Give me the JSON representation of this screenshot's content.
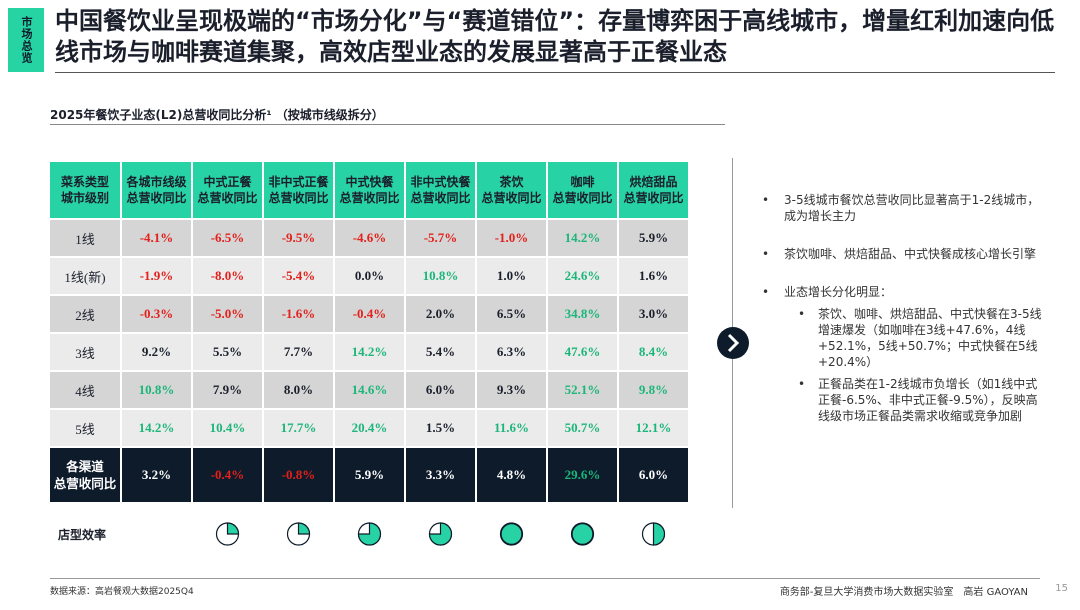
{
  "tag": "市场总览",
  "title": "中国餐饮业呈现极端的“市场分化”与“赛道错位”：存量博弈困于高线城市，增量红利加速向低线市场与咖啡赛道集聚，高效店型业态的发展显著高于正餐业态",
  "subtitle": "2025年餐饮子业态(L2)总营收同比分析¹ （按城市线级拆分）",
  "table": {
    "headers": [
      "菜系类型\n城市级别",
      "各城市线级\n总营收同比",
      "中式正餐\n总营收同比",
      "非中式正餐\n总营收同比",
      "中式快餐\n总营收同比",
      "非中式快餐\n总营收同比",
      "茶饮\n总营收同比",
      "咖啡\n总营收同比",
      "烘焙甜品\n总营收同比"
    ],
    "rows": [
      {
        "label": "1线",
        "cells": [
          "-4.1%",
          "-6.5%",
          "-9.5%",
          "-4.6%",
          "-5.7%",
          "-1.0%",
          "14.2%",
          "5.9%"
        ],
        "colors": [
          "red",
          "red",
          "red",
          "red",
          "red",
          "red",
          "green",
          "default"
        ]
      },
      {
        "label": "1线(新)",
        "cells": [
          "-1.9%",
          "-8.0%",
          "-5.4%",
          "0.0%",
          "10.8%",
          "1.0%",
          "24.6%",
          "1.6%"
        ],
        "colors": [
          "red",
          "red",
          "red",
          "default",
          "green",
          "default",
          "green",
          "default"
        ]
      },
      {
        "label": "2线",
        "cells": [
          "-0.3%",
          "-5.0%",
          "-1.6%",
          "-0.4%",
          "2.0%",
          "6.5%",
          "34.8%",
          "3.0%"
        ],
        "colors": [
          "red",
          "red",
          "red",
          "red",
          "default",
          "default",
          "green",
          "default"
        ]
      },
      {
        "label": "3线",
        "cells": [
          "9.2%",
          "5.5%",
          "7.7%",
          "14.2%",
          "5.4%",
          "6.3%",
          "47.6%",
          "8.4%"
        ],
        "colors": [
          "default",
          "default",
          "default",
          "green",
          "default",
          "default",
          "green",
          "green"
        ]
      },
      {
        "label": "4线",
        "cells": [
          "10.8%",
          "7.9%",
          "8.0%",
          "14.6%",
          "6.0%",
          "9.3%",
          "52.1%",
          "9.8%"
        ],
        "colors": [
          "green",
          "default",
          "default",
          "green",
          "default",
          "default",
          "green",
          "green"
        ]
      },
      {
        "label": "5线",
        "cells": [
          "14.2%",
          "10.4%",
          "17.7%",
          "20.4%",
          "1.5%",
          "11.6%",
          "50.7%",
          "12.1%"
        ],
        "colors": [
          "green",
          "green",
          "green",
          "green",
          "default",
          "green",
          "green",
          "green"
        ]
      }
    ],
    "total": {
      "label": "各渠道\n总营收同比",
      "cells": [
        "3.2%",
        "-0.4%",
        "-0.8%",
        "5.9%",
        "3.3%",
        "4.8%",
        "29.6%",
        "6.0%"
      ],
      "colors": [
        "default",
        "red",
        "red",
        "default",
        "default",
        "default",
        "green",
        "default"
      ]
    }
  },
  "efficiency": {
    "label": "店型效率",
    "values": [
      25,
      25,
      75,
      75,
      100,
      100,
      50
    ]
  },
  "bullets": [
    {
      "text": "3-5线城市餐饮总营收同比显著高于1-2线城市，成为增长主力",
      "sub": []
    },
    {
      "text": "茶饮咖啡、烘焙甜品、中式快餐成核心增长引擎",
      "sub": []
    },
    {
      "text": "业态增长分化明显：",
      "sub": [
        "茶饮、咖啡、烘焙甜品、中式快餐在3-5线增速爆发（如咖啡在3线+47.6%，4线+52.1%，5线+50.7%；中式快餐在5线+20.4%）",
        "正餐品类在1-2线城市负增长（如1线中式正餐-6.5%、非中式正餐-9.5%），反映高线级市场正餐品类需求收缩或竞争加剧"
      ]
    }
  ],
  "footer": {
    "source": "数据来源：高岩餐观大数据2025Q4",
    "org": "商务部-复旦大学消费市场大数据实验室　高岩 GAOYAN",
    "page": "15"
  }
}
